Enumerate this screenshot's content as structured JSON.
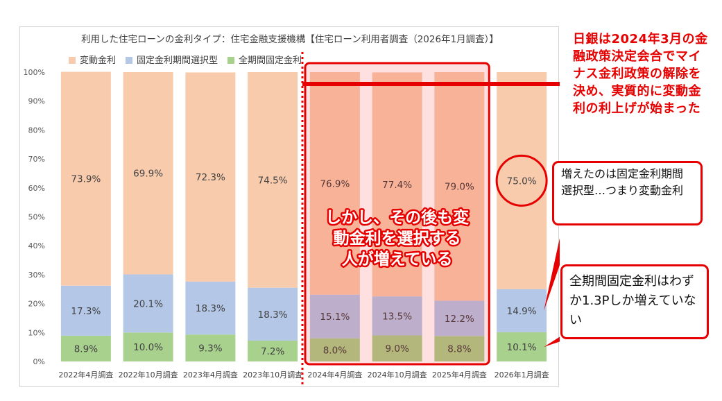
{
  "chart_data": {
    "type": "bar",
    "stacked": true,
    "title": "利用した住宅ローンの金利タイプ：住宅金融支援機構【住宅ローン利用者調査（2026年1月調査）】",
    "categories": [
      "2022年4月調査",
      "2022年10月調査",
      "2023年4月調査",
      "2023年10月調査",
      "2024年4月調査",
      "2024年10月調査",
      "2025年4月調査",
      "2026年1月調査"
    ],
    "series": [
      {
        "name": "全期間固定金利",
        "color": "#a9d18e",
        "values": [
          8.9,
          10.0,
          9.3,
          7.2,
          8.0,
          9.0,
          8.8,
          10.1
        ],
        "labels": [
          "8.9%",
          "10.0%",
          "9.3%",
          "7.2%",
          "8.0%",
          "9.0%",
          "8.8%",
          "10.1%"
        ]
      },
      {
        "name": "固定金利期間選択型",
        "color": "#b4c7e7",
        "values": [
          17.3,
          20.1,
          18.3,
          18.3,
          15.1,
          13.5,
          12.2,
          14.9
        ],
        "labels": [
          "17.3%",
          "20.1%",
          "18.3%",
          "18.3%",
          "15.1%",
          "13.5%",
          "12.2%",
          "14.9%"
        ]
      },
      {
        "name": "変動金利",
        "color": "#f8cbad",
        "values": [
          73.9,
          69.9,
          72.3,
          74.5,
          76.9,
          77.4,
          79.0,
          75.0
        ],
        "labels": [
          "73.9%",
          "69.9%",
          "72.3%",
          "74.5%",
          "76.9%",
          "77.4%",
          "79.0%",
          "75.0%"
        ]
      }
    ],
    "legend_order": [
      2,
      1,
      0
    ],
    "legend_position": "top-left",
    "ylim": [
      0,
      100
    ],
    "y_ticks": [
      "0%",
      "10%",
      "20%",
      "30%",
      "40%",
      "50%",
      "60%",
      "70%",
      "80%",
      "90%",
      "100%"
    ],
    "grid": false,
    "highlight": {
      "categories": [
        4,
        5,
        6
      ],
      "overlay_color": "#ff0000",
      "text": [
        "しかし、その後も変",
        "動金利を選択する",
        "人が増えている"
      ]
    },
    "circled_category": 7
  },
  "annotations": {
    "boj_note": "日銀は2024年3月の金融政策決定会合でマイナス金利政策の解除を決め、実質的に変動金利の利上げが始まった",
    "fixed_period_note": "増えたのは固定金利期間選択型…つまり変動金利",
    "full_fixed_note": "全期間固定金利はわずか1.3Pしか増えていない"
  },
  "colors": {
    "accent": "#e60000"
  }
}
